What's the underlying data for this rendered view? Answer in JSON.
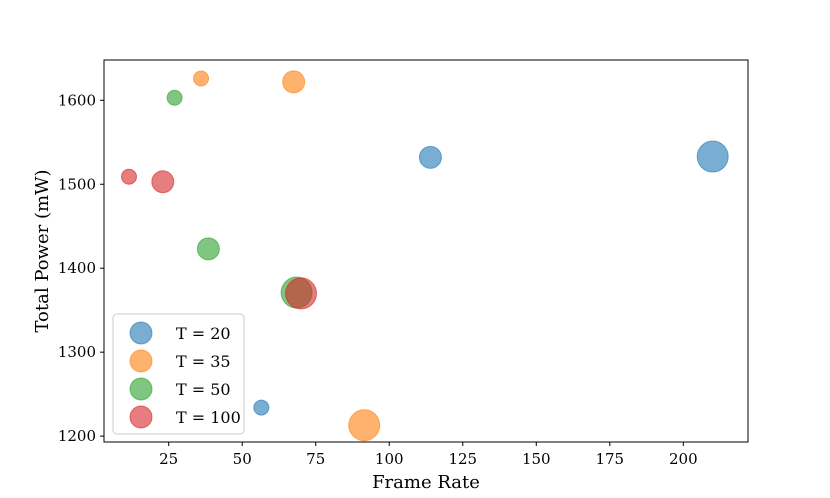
{
  "chart_data": {
    "type": "scatter",
    "xlabel": "Frame Rate",
    "ylabel": "Total Power (mW)",
    "xlim": [
      3,
      222
    ],
    "ylim": [
      1193,
      1648
    ],
    "xticks": [
      25,
      50,
      75,
      100,
      125,
      150,
      175,
      200
    ],
    "yticks": [
      1200,
      1300,
      1400,
      1500,
      1600
    ],
    "grid": false,
    "legend": "lower-left",
    "series": [
      {
        "name": "T = 20",
        "color": "#1f77b4",
        "points": [
          {
            "x": 56.5,
            "y": 1234,
            "size": 1
          },
          {
            "x": 114,
            "y": 1532,
            "size": 2
          },
          {
            "x": 210,
            "y": 1533,
            "size": 3
          }
        ]
      },
      {
        "name": "T = 35",
        "color": "#ff7f0e",
        "points": [
          {
            "x": 36,
            "y": 1626,
            "size": 1
          },
          {
            "x": 67.5,
            "y": 1622,
            "size": 2
          },
          {
            "x": 91.5,
            "y": 1213,
            "size": 3
          }
        ]
      },
      {
        "name": "T = 50",
        "color": "#2ca02c",
        "points": [
          {
            "x": 27,
            "y": 1603,
            "size": 1
          },
          {
            "x": 38.5,
            "y": 1423,
            "size": 2
          },
          {
            "x": 68.5,
            "y": 1371,
            "size": 3
          }
        ]
      },
      {
        "name": "T = 100",
        "color": "#d62728",
        "points": [
          {
            "x": 11.5,
            "y": 1509,
            "size": 1
          },
          {
            "x": 23,
            "y": 1503,
            "size": 2
          },
          {
            "x": 70,
            "y": 1370,
            "size": 3
          }
        ]
      }
    ]
  }
}
